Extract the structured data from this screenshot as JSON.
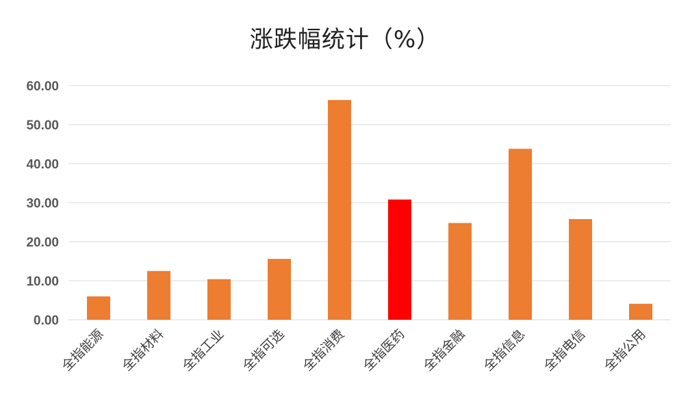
{
  "chart_data": {
    "type": "bar",
    "title": "涨跌幅统计（%）",
    "categories": [
      "全指能源",
      "全指材料",
      "全指工业",
      "全指可选",
      "全指消费",
      "全指医药",
      "全指金融",
      "全指信息",
      "全指电信",
      "全指公用"
    ],
    "values": [
      6.0,
      12.5,
      10.4,
      15.6,
      56.3,
      30.8,
      24.8,
      43.8,
      25.8,
      4.1
    ],
    "y_ticks": [
      "0.00",
      "10.00",
      "20.00",
      "30.00",
      "40.00",
      "50.00",
      "60.00"
    ],
    "ylim": [
      0,
      60
    ],
    "xlabel": "",
    "ylabel": "",
    "grid": true,
    "legend": "none",
    "colors": {
      "bar": "#ED7D31",
      "highlight": "#FF0000",
      "highlight_index": 5,
      "grid": "#D9D9D9"
    }
  }
}
